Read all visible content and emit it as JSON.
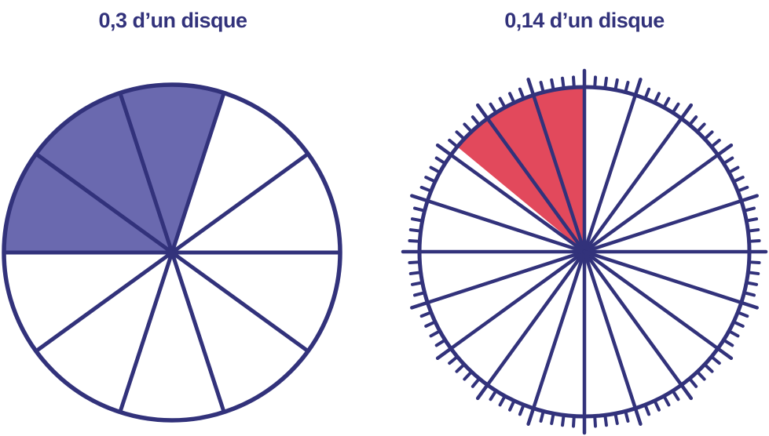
{
  "style": {
    "line_color": "#32327B",
    "title_color": "#32327B",
    "background": "#FFFFFF",
    "left_fill_color": "#6A69AF",
    "right_fill_color": "#E2495C"
  },
  "chart_data": [
    {
      "type": "pie",
      "title": "0,3 d’un disque",
      "fraction_shaded": 0.3,
      "total_divisions": 10,
      "shaded_divisions": 3,
      "shade_from_deg": 72,
      "shade_to_deg": 180,
      "fill_color": "#6A69AF",
      "minor_ticks": 0
    },
    {
      "type": "pie",
      "title": "0,14 d’un disque",
      "fraction_shaded": 0.14,
      "total_divisions": 20,
      "shaded_divisions": 2.8,
      "shade_from_deg": 90,
      "shade_to_deg": 140.4,
      "fill_color": "#E2495C",
      "minor_ticks": 100
    }
  ]
}
